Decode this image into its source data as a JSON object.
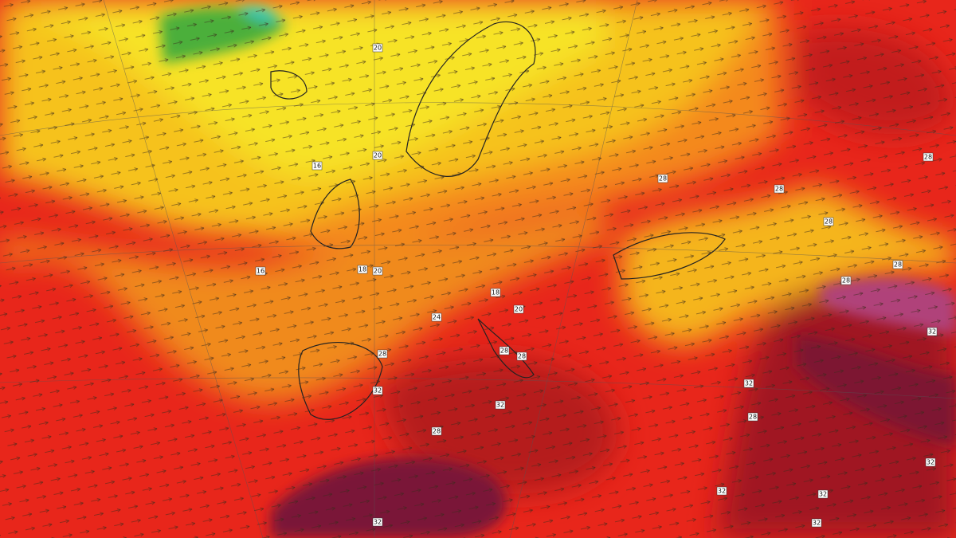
{
  "map_labels": [
    "20",
    "20",
    "16",
    "16",
    "18",
    "20",
    "18",
    "20",
    "24",
    "28",
    "28",
    "28",
    "32",
    "32",
    "28",
    "32",
    "28",
    "28",
    "28",
    "28",
    "28",
    "32",
    "32",
    "28",
    "32",
    "32",
    "32",
    "32",
    "28"
  ]
}
